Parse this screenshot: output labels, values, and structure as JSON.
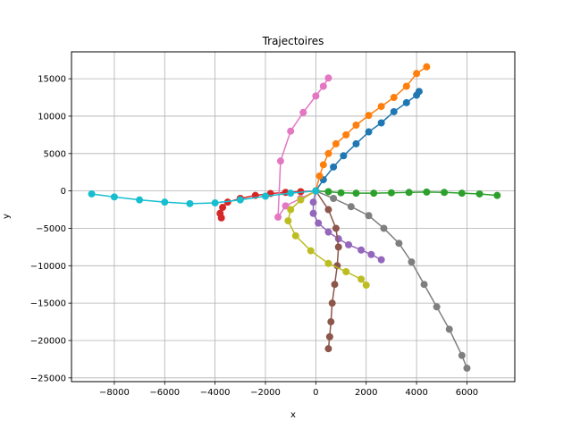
{
  "chart_data": {
    "type": "scatter",
    "title": "Trajectoires",
    "xlabel": "x",
    "ylabel": "y",
    "xlim": [
      -9700,
      7900
    ],
    "ylim": [
      -25500,
      18600
    ],
    "xticks": [
      -8000,
      -6000,
      -4000,
      -2000,
      0,
      2000,
      4000,
      6000
    ],
    "yticks": [
      -25000,
      -20000,
      -15000,
      -10000,
      -5000,
      0,
      5000,
      10000,
      15000
    ],
    "grid": true,
    "series": [
      {
        "color": "#1f77b4",
        "x": [
          0,
          300,
          700,
          1100,
          1600,
          2100,
          2600,
          3100,
          3600,
          4000,
          4100
        ],
        "y": [
          0,
          1500,
          3200,
          4700,
          6300,
          7900,
          9100,
          10600,
          11800,
          12800,
          13300
        ]
      },
      {
        "color": "#ff7f0e",
        "x": [
          0,
          150,
          300,
          500,
          800,
          1200,
          1600,
          2100,
          2600,
          3100,
          3600,
          4000,
          4400
        ],
        "y": [
          0,
          2000,
          3500,
          5000,
          6300,
          7500,
          8800,
          10100,
          11300,
          12500,
          14000,
          15700,
          16600
        ]
      },
      {
        "color": "#2ca02c",
        "x": [
          0,
          500,
          1000,
          1600,
          2300,
          3000,
          3700,
          4400,
          5100,
          5800,
          6500,
          7200
        ],
        "y": [
          0,
          -100,
          -250,
          -300,
          -300,
          -250,
          -200,
          -150,
          -200,
          -300,
          -400,
          -600
        ]
      },
      {
        "color": "#d62728",
        "x": [
          0,
          -600,
          -1200,
          -1800,
          -2400,
          -3000,
          -3500,
          -3700,
          -3800,
          -3750
        ],
        "y": [
          0,
          -100,
          -200,
          -350,
          -600,
          -1000,
          -1500,
          -2200,
          -3000,
          -3600
        ]
      },
      {
        "color": "#9467bd",
        "x": [
          0,
          -100,
          -100,
          100,
          500,
          900,
          1300,
          1800,
          2200,
          2600
        ],
        "y": [
          0,
          -1500,
          -3000,
          -4300,
          -5500,
          -6400,
          -7200,
          -7900,
          -8500,
          -9200
        ]
      },
      {
        "color": "#8c564b",
        "x": [
          0,
          500,
          800,
          900,
          850,
          750,
          650,
          600,
          550,
          500
        ],
        "y": [
          0,
          -2500,
          -5000,
          -7500,
          -10000,
          -12500,
          -15000,
          -17500,
          -19500,
          -21100
        ]
      },
      {
        "color": "#e377c2",
        "x": [
          0,
          -600,
          -1200,
          -1500,
          -1400,
          -1000,
          -500,
          0,
          300,
          500
        ],
        "y": [
          0,
          -1000,
          -2000,
          -3500,
          4000,
          8000,
          10500,
          12700,
          14000,
          15100
        ]
      },
      {
        "color": "#7f7f7f",
        "x": [
          0,
          700,
          1400,
          2100,
          2700,
          3300,
          3800,
          4300,
          4800,
          5300,
          5800,
          6000
        ],
        "y": [
          0,
          -1000,
          -2100,
          -3300,
          -5000,
          -7000,
          -9500,
          -12500,
          -15500,
          -18500,
          -22000,
          -23700
        ]
      },
      {
        "color": "#bcbd22",
        "x": [
          0,
          -600,
          -1000,
          -1100,
          -800,
          -200,
          500,
          1200,
          1800,
          2000
        ],
        "y": [
          0,
          -1200,
          -2500,
          -4000,
          -6000,
          -8000,
          -9700,
          -10800,
          -11800,
          -12600
        ]
      },
      {
        "color": "#17becf",
        "x": [
          0,
          -1000,
          -2000,
          -3000,
          -4000,
          -5000,
          -6000,
          -7000,
          -8000,
          -8900
        ],
        "y": [
          0,
          -300,
          -700,
          -1200,
          -1600,
          -1700,
          -1500,
          -1200,
          -800,
          -400
        ]
      }
    ]
  }
}
